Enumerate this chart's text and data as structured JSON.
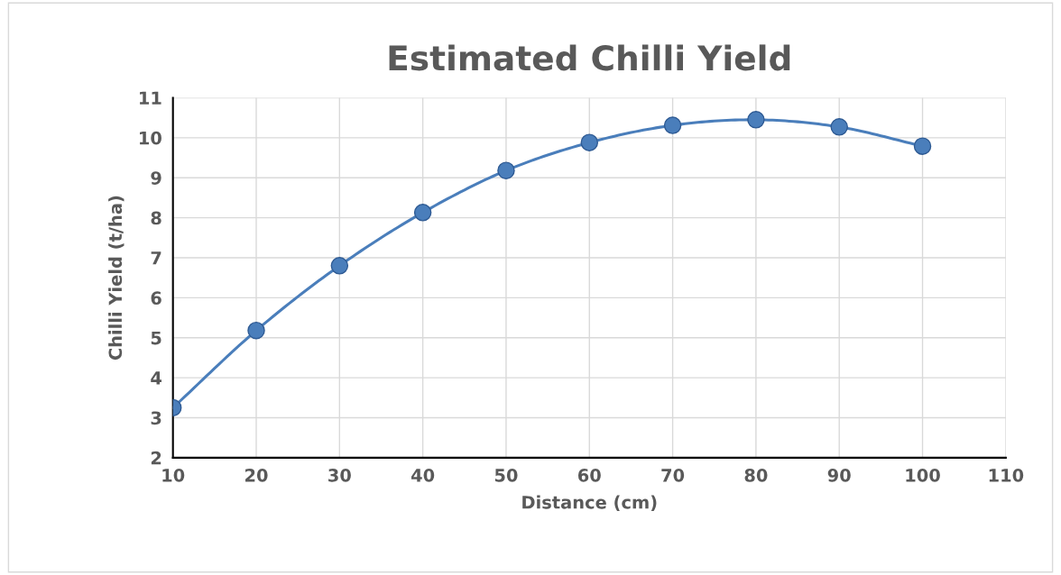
{
  "chart_data": {
    "type": "line",
    "title": "Estimated Chilli Yield",
    "xlabel": "Distance (cm)",
    "ylabel": "Chilli Yield (t/ha)",
    "x": [
      10,
      20,
      30,
      40,
      50,
      60,
      70,
      80,
      90,
      100
    ],
    "series": [
      {
        "color": "#4a7ebb",
        "values": [
          3.25,
          5.18,
          6.8,
          8.13,
          9.18,
          9.88,
          10.31,
          10.45,
          10.27,
          9.79
        ]
      }
    ],
    "xlim": [
      10,
      110
    ],
    "xticks": [
      10,
      20,
      30,
      40,
      50,
      60,
      70,
      80,
      90,
      100,
      110
    ],
    "ylim": [
      2,
      11
    ],
    "yticks": [
      2,
      3,
      4,
      5,
      6,
      7,
      8,
      9,
      10,
      11
    ],
    "grid": true,
    "marker": "circle",
    "line_style": "solid"
  }
}
